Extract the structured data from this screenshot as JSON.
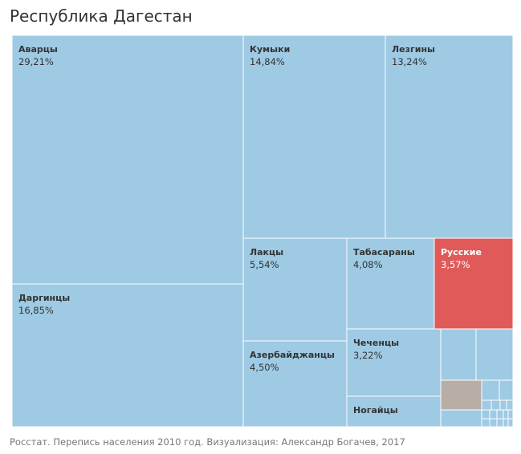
{
  "chart_data": {
    "type": "treemap",
    "title": "Республика Дагестан",
    "source": "Росстат. Перепись населения 2010 год. Визуализация: Александр Богачев, 2017",
    "colors": {
      "base": "#9ecae4",
      "highlight": "#e05a5a",
      "other": "#b8aea6",
      "label": "#333333",
      "highlight_label": "#ffffff"
    },
    "highlight": "Русские",
    "items": [
      {
        "label": "Аварцы",
        "value": 29.21,
        "display": "29,21%"
      },
      {
        "label": "Даргинцы",
        "value": 16.85,
        "display": "16,85%"
      },
      {
        "label": "Кумыки",
        "value": 14.84,
        "display": "14,84%"
      },
      {
        "label": "Лезгины",
        "value": 13.24,
        "display": "13,24%"
      },
      {
        "label": "Лакцы",
        "value": 5.54,
        "display": "5,54%"
      },
      {
        "label": "Азербайджанцы",
        "value": 4.5,
        "display": "4,50%"
      },
      {
        "label": "Табасараны",
        "value": 4.08,
        "display": "4,08%"
      },
      {
        "label": "Русские",
        "value": 3.57,
        "display": "3,57%"
      },
      {
        "label": "Чеченцы",
        "value": 3.22,
        "display": "3,22%"
      },
      {
        "label": "Ногайцы",
        "value": null,
        "display": null
      }
    ]
  }
}
